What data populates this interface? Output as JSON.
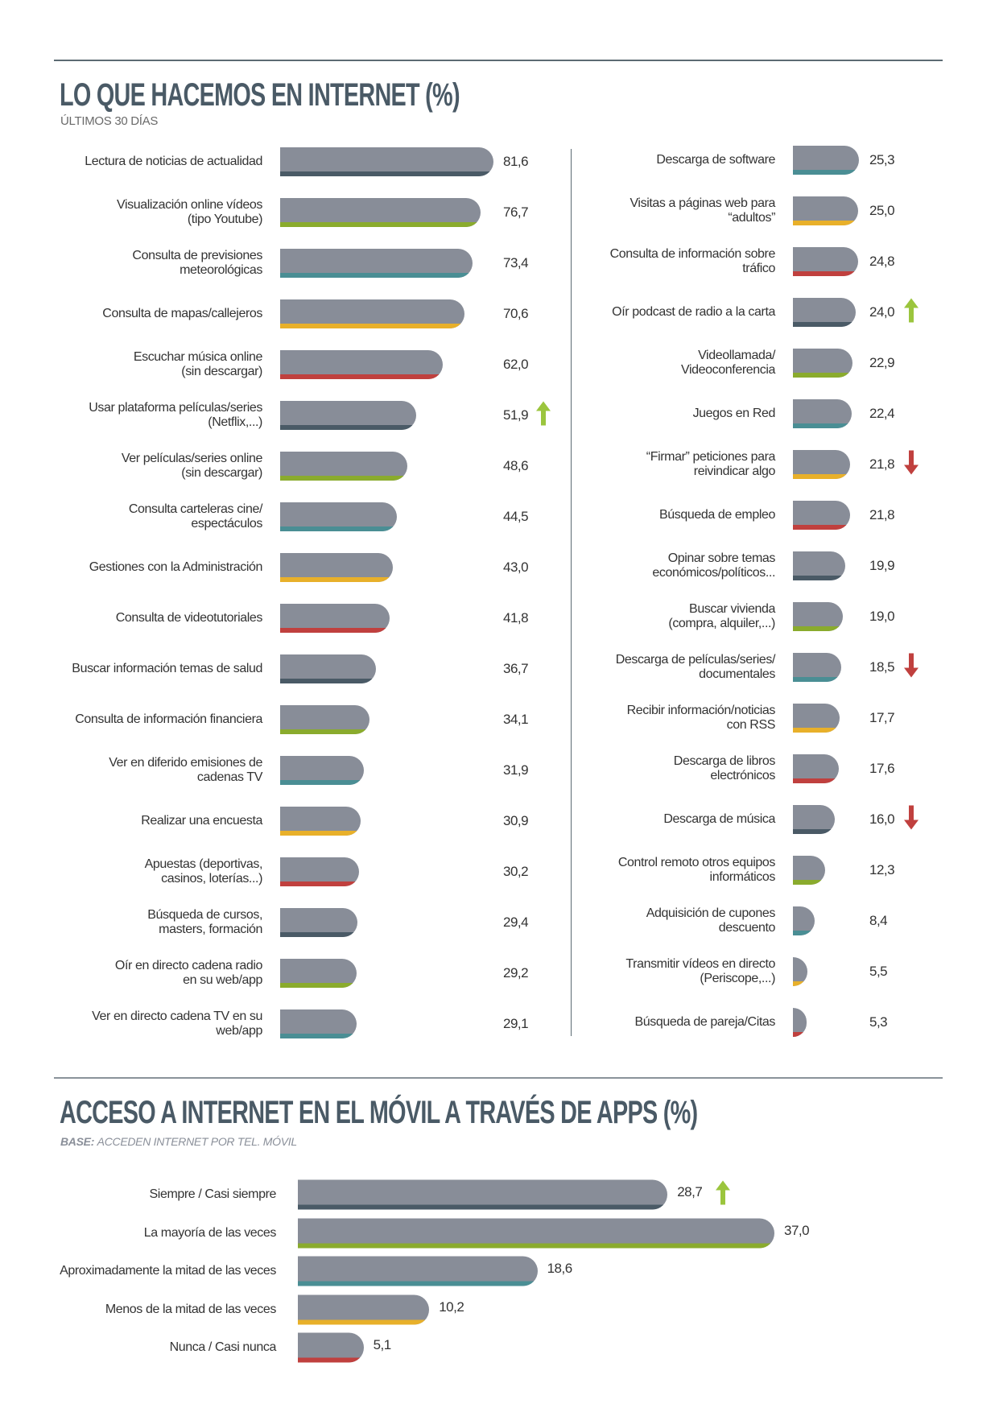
{
  "colors": {
    "bar": "#888d98",
    "stripes": [
      "#4a5a66",
      "#8aab2d",
      "#4a8e94",
      "#e8b02a",
      "#c0403e"
    ],
    "up": "#9bc53d",
    "down": "#c0403e"
  },
  "chart_data": [
    {
      "type": "bar",
      "title": "LO QUE HACEMOS EN INTERNET (%)",
      "subtitle": "ÚLTIMOS 30 DÍAS",
      "orientation": "horizontal",
      "columns": [
        {
          "items": [
            {
              "label": "Lectura de noticias de actualidad",
              "value": 81.6,
              "display": "81,6"
            },
            {
              "label": "Visualización online vídeos\n(tipo Youtube)",
              "value": 76.7,
              "display": "76,7"
            },
            {
              "label": "Consulta de previsiones\nmeteorológicas",
              "value": 73.4,
              "display": "73,4"
            },
            {
              "label": "Consulta de mapas/callejeros",
              "value": 70.6,
              "display": "70,6"
            },
            {
              "label": "Escuchar música online\n(sin descargar)",
              "value": 62.0,
              "display": "62,0"
            },
            {
              "label": "Usar plataforma películas/series\n(Netflix,...)",
              "value": 51.9,
              "display": "51,9",
              "trend": "up"
            },
            {
              "label": "Ver películas/series online\n(sin descargar)",
              "value": 48.6,
              "display": "48,6"
            },
            {
              "label": "Consulta carteleras cine/\nespectáculos",
              "value": 44.5,
              "display": "44,5"
            },
            {
              "label": "Gestiones con la Administración",
              "value": 43.0,
              "display": "43,0"
            },
            {
              "label": "Consulta de videotutoriales",
              "value": 41.8,
              "display": "41,8"
            },
            {
              "label": "Buscar información temas de salud",
              "value": 36.7,
              "display": "36,7"
            },
            {
              "label": "Consulta de información financiera",
              "value": 34.1,
              "display": "34,1"
            },
            {
              "label": "Ver en diferido emisiones de\ncadenas TV",
              "value": 31.9,
              "display": "31,9"
            },
            {
              "label": "Realizar una encuesta",
              "value": 30.9,
              "display": "30,9"
            },
            {
              "label": "Apuestas (deportivas,\ncasinos, loterías...)",
              "value": 30.2,
              "display": "30,2"
            },
            {
              "label": "Búsqueda de cursos,\nmasters, formación",
              "value": 29.4,
              "display": "29,4"
            },
            {
              "label": "Oír en directo cadena radio\nen su web/app",
              "value": 29.2,
              "display": "29,2"
            },
            {
              "label": "Ver en directo cadena TV en su\nweb/app",
              "value": 29.1,
              "display": "29,1"
            }
          ]
        },
        {
          "items": [
            {
              "label": "Descarga de software",
              "value": 25.3,
              "display": "25,3"
            },
            {
              "label": "Visitas a páginas web para\n“adultos”",
              "value": 25.0,
              "display": "25,0"
            },
            {
              "label": "Consulta de información sobre\ntráfico",
              "value": 24.8,
              "display": "24,8"
            },
            {
              "label": "Oír podcast de radio a la carta",
              "value": 24.0,
              "display": "24,0",
              "trend": "up"
            },
            {
              "label": "Videollamada/\nVideoconferencia",
              "value": 22.9,
              "display": "22,9"
            },
            {
              "label": "Juegos en Red",
              "value": 22.4,
              "display": "22,4"
            },
            {
              "label": "“Firmar” peticiones para\nreivindicar algo",
              "value": 21.8,
              "display": "21,8",
              "trend": "down"
            },
            {
              "label": "Búsqueda de empleo",
              "value": 21.8,
              "display": "21,8"
            },
            {
              "label": "Opinar sobre temas\neconómicos/políticos...",
              "value": 19.9,
              "display": "19,9"
            },
            {
              "label": "Buscar vivienda\n(compra, alquiler,...)",
              "value": 19.0,
              "display": "19,0"
            },
            {
              "label": "Descarga de películas/series/\ndocumentales",
              "value": 18.5,
              "display": "18,5",
              "trend": "down"
            },
            {
              "label": "Recibir información/noticias\ncon RSS",
              "value": 17.7,
              "display": "17,7"
            },
            {
              "label": "Descarga de libros\nelectrónicos",
              "value": 17.6,
              "display": "17,6"
            },
            {
              "label": "Descarga de música",
              "value": 16.0,
              "display": "16,0",
              "trend": "down"
            },
            {
              "label": "Control remoto otros equipos\ninformáticos",
              "value": 12.3,
              "display": "12,3"
            },
            {
              "label": "Adquisición de cupones\ndescuento",
              "value": 8.4,
              "display": "8,4"
            },
            {
              "label": "Transmitir vídeos en directo\n(Periscope,...)",
              "value": 5.5,
              "display": "5,5"
            },
            {
              "label": "Búsqueda de pareja/Citas",
              "value": 5.3,
              "display": "5,3"
            }
          ]
        }
      ]
    },
    {
      "type": "bar",
      "title": "ACCESO A INTERNET EN EL MÓVIL A TRAVÉS DE APPS (%)",
      "base_label": "BASE:",
      "base_text": "ACCEDEN INTERNET POR TEL. MÓVIL",
      "orientation": "horizontal",
      "items": [
        {
          "label": "Siempre / Casi siempre",
          "value": 28.7,
          "display": "28,7",
          "trend": "up"
        },
        {
          "label": "La mayoría de las veces",
          "value": 37.0,
          "display": "37,0"
        },
        {
          "label": "Aproximadamente la mitad de las veces",
          "value": 18.6,
          "display": "18,6"
        },
        {
          "label": "Menos de la mitad de las veces",
          "value": 10.2,
          "display": "10,2"
        },
        {
          "label": "Nunca / Casi nunca",
          "value": 5.1,
          "display": "5,1"
        }
      ]
    }
  ]
}
